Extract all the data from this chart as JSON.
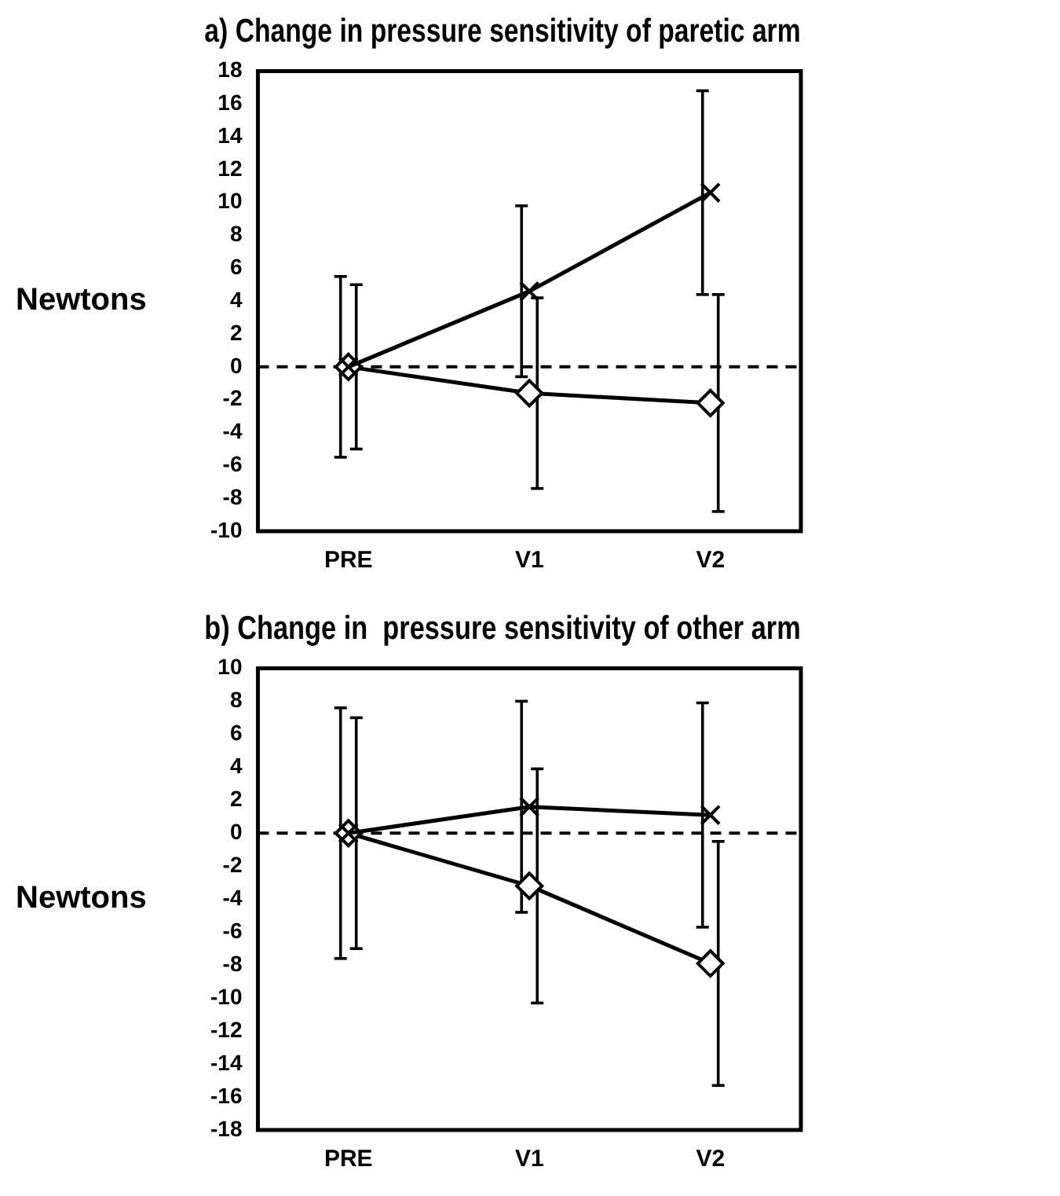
{
  "chart_data": [
    {
      "type": "line",
      "title": "a) Change in pressure sensitivity of paretic arm",
      "ylabel": "Newtons",
      "categories": [
        "PRE",
        "V1",
        "V2"
      ],
      "series": [
        {
          "color": "#000000",
          "marker": "cross",
          "values": [
            0,
            4.6,
            10.6
          ],
          "errors": [
            5.5,
            5.2,
            6.2
          ]
        },
        {
          "color": "#000000",
          "marker": "diamond",
          "values": [
            0,
            -1.6,
            -2.2
          ],
          "errors": [
            5.0,
            5.8,
            6.6
          ]
        }
      ],
      "ylim": [
        -10,
        18
      ],
      "yticks": [
        -10,
        -8,
        -6,
        -4,
        -2,
        0,
        2,
        4,
        6,
        8,
        10,
        12,
        14,
        16,
        18
      ],
      "grid": false,
      "legend": false,
      "ref_lines": [
        {
          "axis": "y",
          "value": 0,
          "color": "#000000",
          "line_style": "dashed"
        }
      ]
    },
    {
      "type": "line",
      "title": "b) Change in  pressure sensitivity of other arm",
      "ylabel": "Newtons",
      "categories": [
        "PRE",
        "V1",
        "V2"
      ],
      "series": [
        {
          "color": "#000000",
          "marker": "cross",
          "values": [
            0,
            1.6,
            1.1
          ],
          "errors": [
            7.6,
            6.4,
            6.8
          ]
        },
        {
          "color": "#000000",
          "marker": "diamond",
          "values": [
            0,
            -3.2,
            -7.9
          ],
          "errors": [
            7.0,
            7.1,
            7.4
          ]
        }
      ],
      "ylim": [
        -18,
        10
      ],
      "yticks": [
        -18,
        -16,
        -14,
        -12,
        -10,
        -8,
        -6,
        -4,
        -2,
        0,
        2,
        4,
        6,
        8,
        10
      ],
      "grid": false,
      "legend": false,
      "ref_lines": [
        {
          "axis": "y",
          "value": 0,
          "color": "#000000",
          "line_style": "dashed"
        }
      ]
    }
  ]
}
